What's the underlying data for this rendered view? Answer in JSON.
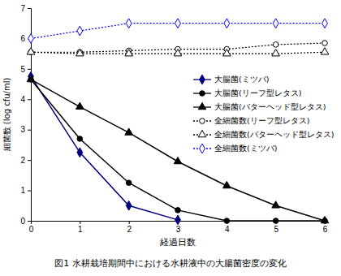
{
  "chart_data": {
    "type": "line",
    "title": "図1 水耕栽培期間中における水耕液中の大腸菌密度の変化",
    "x_label": "経過日数",
    "y_label": "細菌数 (log cfu/ml)",
    "x": [
      0,
      1,
      2,
      3,
      4,
      5,
      6
    ],
    "xlim": [
      0,
      6
    ],
    "xticks": [
      0,
      1,
      2,
      3,
      4,
      5,
      6
    ],
    "ylim": [
      0,
      7
    ],
    "yticks": [
      0,
      1,
      2,
      3,
      4,
      5,
      6,
      7
    ],
    "grid": false,
    "legend": "right",
    "series": [
      {
        "name": "大腸菌(ミツバ)",
        "color": "#000080",
        "marker": "diamond",
        "line_style": "solid",
        "values": [
          4.75,
          2.25,
          0.5,
          0.03,
          null,
          null,
          null
        ]
      },
      {
        "name": "大腸菌(リーフ型レタス)",
        "color": "#000000",
        "marker": "circle",
        "line_style": "solid",
        "values": [
          4.65,
          2.7,
          1.25,
          0.35,
          0,
          0,
          0
        ]
      },
      {
        "name": "大腸菌(バターヘッド型レタス)",
        "color": "#000000",
        "marker": "triangle",
        "line_style": "solid",
        "values": [
          4.65,
          3.75,
          2.9,
          1.95,
          1.15,
          0.5,
          0
        ]
      },
      {
        "name": "全細菌数(リーフ型レタス)",
        "color": "#000000",
        "marker": "circle-open",
        "line_style": "dotted",
        "values": [
          5.55,
          5.55,
          5.6,
          5.65,
          5.65,
          5.8,
          5.85
        ]
      },
      {
        "name": "全細菌数(バターヘッド型レタス)",
        "color": "#000000",
        "marker": "triangle-open",
        "line_style": "dotted",
        "values": [
          5.55,
          5.5,
          5.5,
          5.5,
          5.5,
          5.5,
          5.55
        ]
      },
      {
        "name": "全細菌数(ミツバ)",
        "color": "#0000ff",
        "marker": "diamond-open",
        "line_style": "dotted",
        "values": [
          6.0,
          6.25,
          6.5,
          6.5,
          6.5,
          6.5,
          6.5
        ]
      }
    ]
  }
}
